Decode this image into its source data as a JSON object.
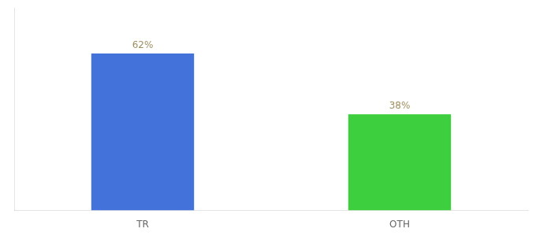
{
  "chart_data": {
    "type": "bar",
    "categories": [
      "TR",
      "OTH"
    ],
    "values": [
      62,
      38
    ],
    "value_labels": [
      "62%",
      "38%"
    ],
    "colors": [
      "#4472db",
      "#3ecf3e"
    ],
    "ylim": [
      0,
      80
    ],
    "grid": false,
    "data_labels": true,
    "tick_labels": "x"
  }
}
